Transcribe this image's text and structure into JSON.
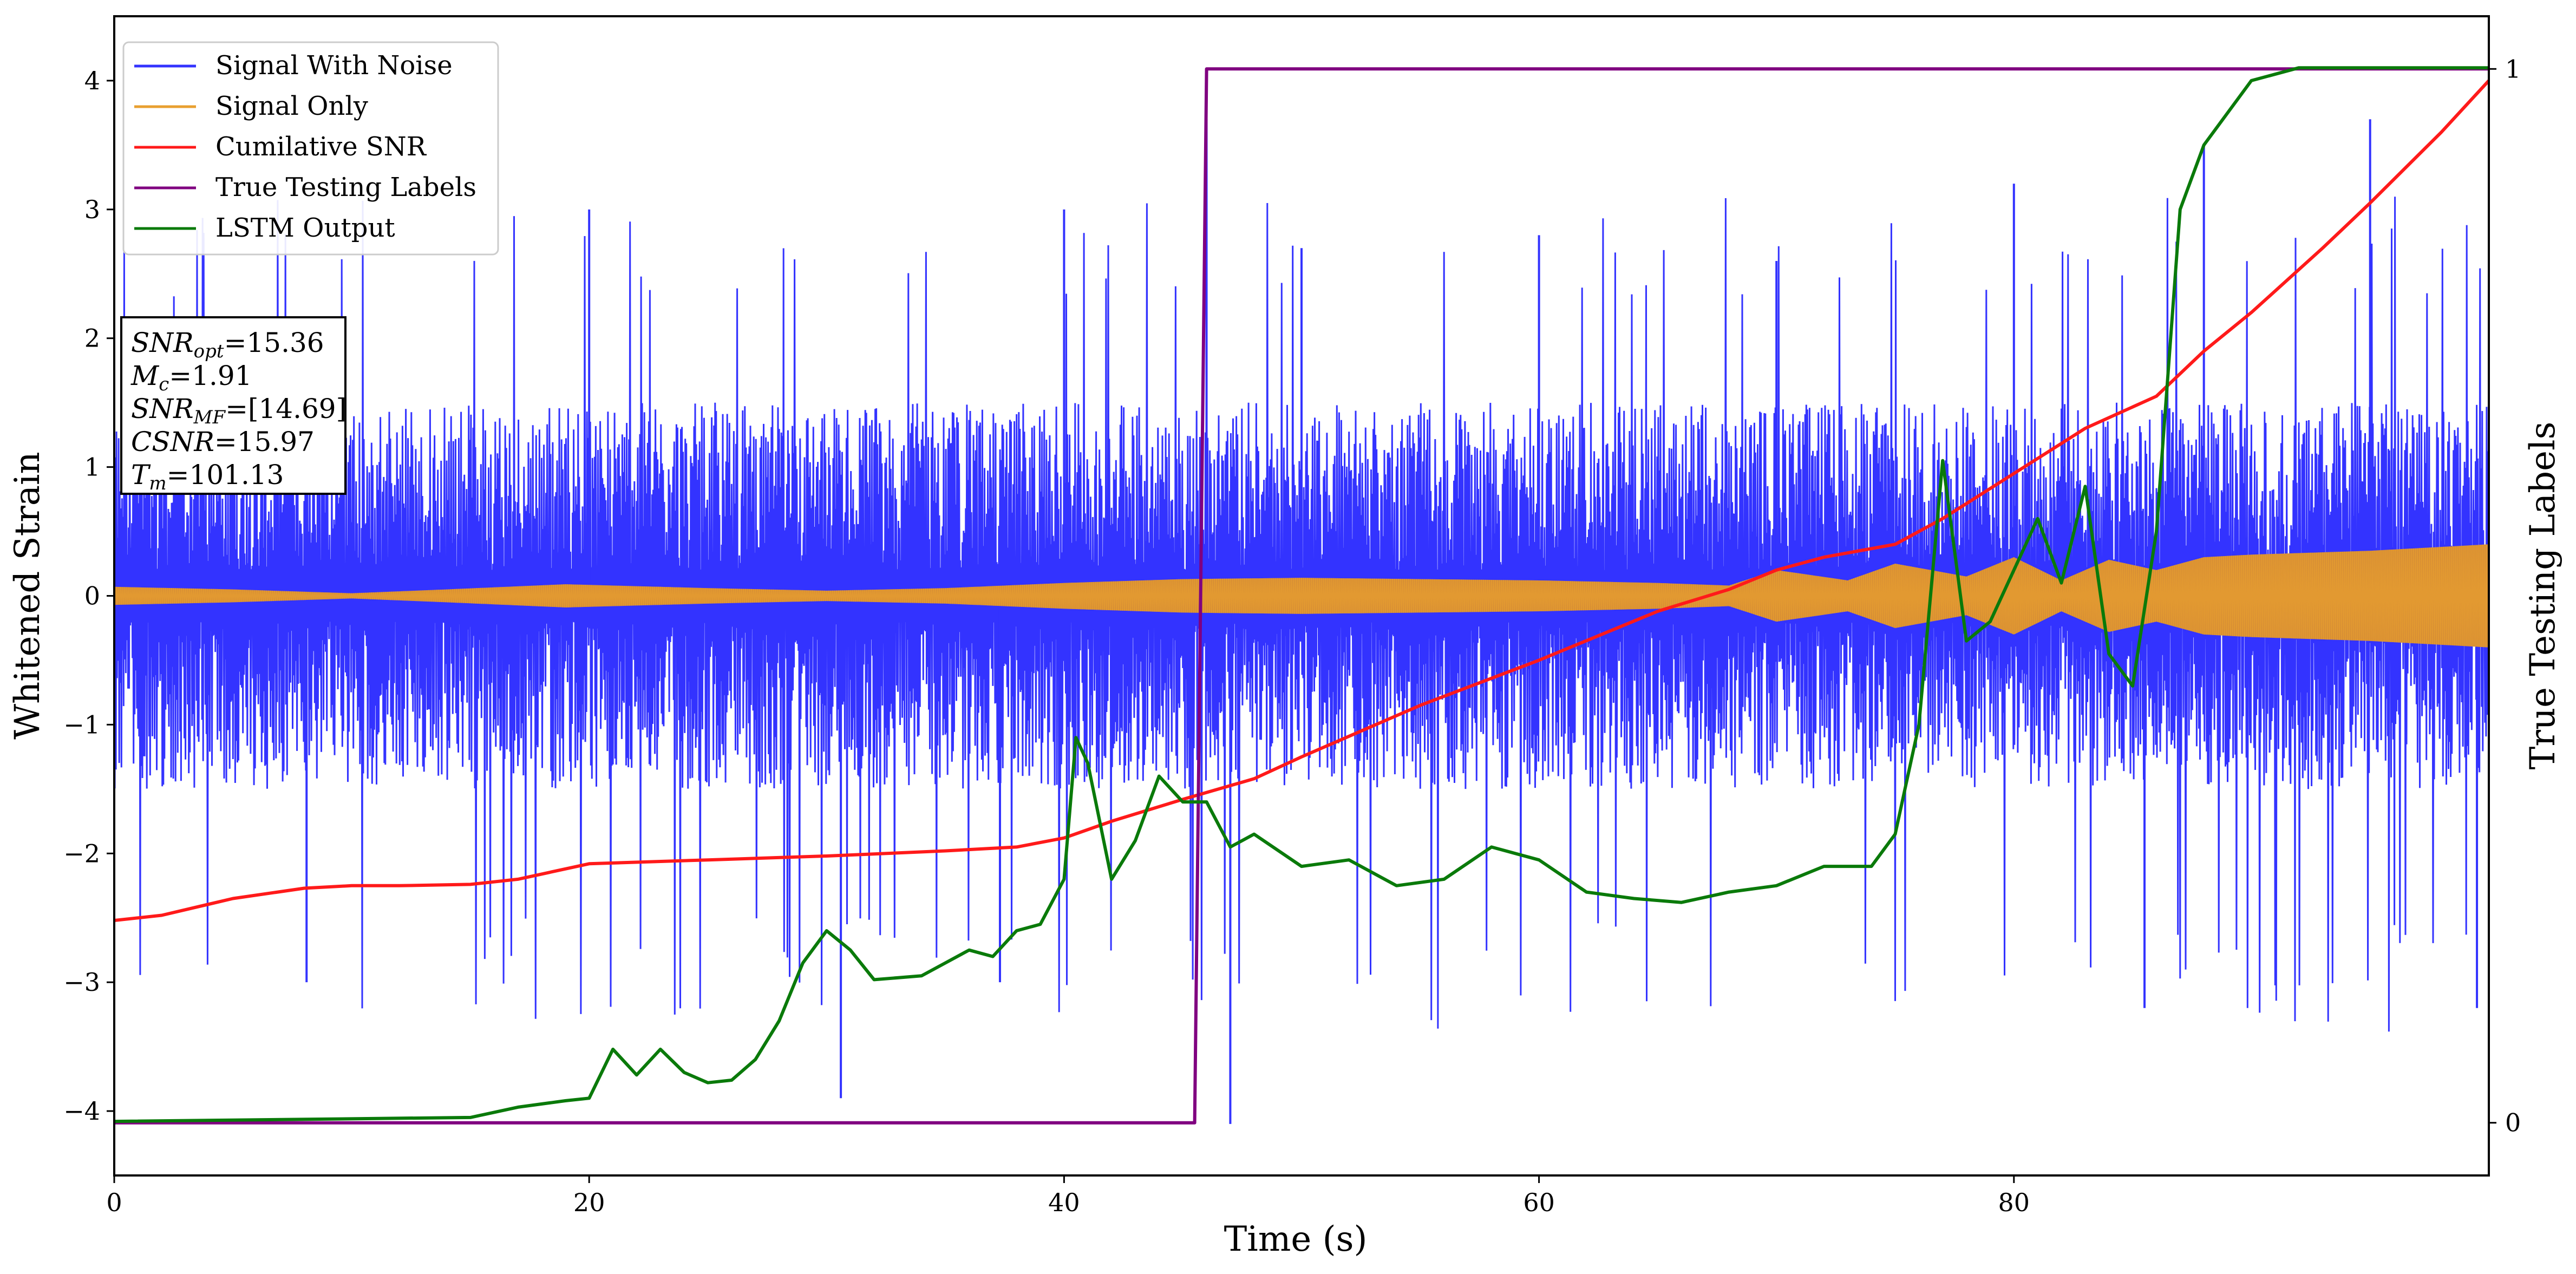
{
  "chart_data": {
    "type": "line",
    "xlabel": "Time (s)",
    "ylabel": "Whitened Strain",
    "y2label": "True Testing Labels",
    "xlim": [
      0,
      100
    ],
    "ylim": [
      -4.5,
      4.5
    ],
    "y2lim": [
      -0.05,
      1.05
    ],
    "x_ticks": [
      0,
      20,
      40,
      60,
      80
    ],
    "y_ticks": [
      -4,
      -3,
      -2,
      -1,
      0,
      1,
      2,
      3,
      4
    ],
    "y2_ticks": [
      0,
      1
    ],
    "grid": false,
    "legend_position": "top-left",
    "info_box": [
      "SNR_opt=15.36",
      "M_c=1.91",
      "SNR_MF=[14.69]",
      "CSNR=15.97",
      "T_m=101.13"
    ],
    "series": [
      {
        "name": "Signal With Noise",
        "color": "#3333ff",
        "axis": "left",
        "noise_band": {
          "typical_pos": 1.6,
          "typical_neg": -1.6,
          "peak_pos": 3.7,
          "peak_neg": -4.1
        },
        "x": [
          0,
          20,
          40,
          46,
          50,
          60,
          70,
          80,
          88,
          95,
          100
        ],
        "y": [
          2.9,
          3.0,
          3.0,
          3.7,
          2.7,
          2.8,
          2.6,
          3.2,
          3.5,
          3.7,
          3.3
        ]
      },
      {
        "name": "Signal Only",
        "color": "#e8a030",
        "axis": "left",
        "envelope_x": [
          0,
          5,
          10,
          14,
          19,
          25,
          30,
          35,
          40,
          45,
          50,
          55,
          60,
          65,
          68,
          70,
          73,
          75,
          78,
          80,
          82,
          84,
          86,
          88,
          90,
          95,
          100
        ],
        "envelope_amp": [
          0.07,
          0.05,
          0.02,
          0.05,
          0.09,
          0.06,
          0.04,
          0.06,
          0.1,
          0.13,
          0.14,
          0.13,
          0.12,
          0.1,
          0.08,
          0.2,
          0.12,
          0.25,
          0.15,
          0.3,
          0.12,
          0.28,
          0.2,
          0.3,
          0.32,
          0.35,
          0.4
        ]
      },
      {
        "name": "Cumilative SNR",
        "color": "#ff1a1a",
        "axis": "left",
        "x": [
          0,
          2,
          5,
          8,
          10,
          12,
          15,
          17,
          20,
          25,
          30,
          35,
          38,
          40,
          42,
          45,
          48,
          50,
          55,
          60,
          65,
          68,
          70,
          72,
          75,
          77,
          80,
          83,
          86,
          88,
          90,
          93,
          95,
          98,
          100
        ],
        "y": [
          -2.52,
          -2.48,
          -2.35,
          -2.27,
          -2.25,
          -2.25,
          -2.24,
          -2.2,
          -2.08,
          -2.05,
          -2.02,
          -1.98,
          -1.95,
          -1.88,
          -1.75,
          -1.58,
          -1.42,
          -1.25,
          -0.85,
          -0.5,
          -0.12,
          0.05,
          0.2,
          0.3,
          0.4,
          0.6,
          0.95,
          1.3,
          1.55,
          1.9,
          2.2,
          2.7,
          3.05,
          3.6,
          4.0
        ]
      },
      {
        "name": "True Testing Labels",
        "color": "#800080",
        "axis": "right",
        "x": [
          0,
          45.5,
          46.0,
          100
        ],
        "y": [
          0,
          0,
          1,
          1
        ]
      },
      {
        "name": "LSTM Output",
        "color": "#0a7a0a",
        "axis": "left",
        "x": [
          0,
          15,
          17,
          19,
          20,
          21,
          22,
          23,
          24,
          25,
          26,
          27,
          28,
          29,
          30,
          31,
          32,
          34,
          35,
          36,
          37,
          38,
          39,
          40,
          40.5,
          41,
          42,
          43,
          44,
          45,
          46,
          47,
          48,
          50,
          52,
          54,
          56,
          58,
          60,
          62,
          64,
          66,
          68,
          70,
          72,
          74,
          75,
          76,
          77,
          78,
          79,
          80,
          81,
          82,
          83,
          84,
          85,
          86,
          87,
          88,
          90,
          92,
          95,
          100
        ],
        "y": [
          -4.08,
          -4.05,
          -3.97,
          -3.92,
          -3.9,
          -3.52,
          -3.72,
          -3.52,
          -3.7,
          -3.78,
          -3.76,
          -3.6,
          -3.3,
          -2.85,
          -2.6,
          -2.75,
          -2.98,
          -2.95,
          -2.85,
          -2.75,
          -2.8,
          -2.6,
          -2.55,
          -2.2,
          -1.1,
          -1.3,
          -2.2,
          -1.9,
          -1.4,
          -1.6,
          -1.6,
          -1.95,
          -1.85,
          -2.1,
          -2.05,
          -2.25,
          -2.2,
          -1.95,
          -2.05,
          -2.3,
          -2.35,
          -2.38,
          -2.3,
          -2.25,
          -2.1,
          -2.1,
          -1.85,
          -1.0,
          1.05,
          -0.35,
          -0.2,
          0.2,
          0.6,
          0.1,
          0.85,
          -0.45,
          -0.7,
          0.5,
          3.0,
          3.5,
          4.0,
          4.1,
          4.1,
          4.1
        ]
      }
    ]
  }
}
